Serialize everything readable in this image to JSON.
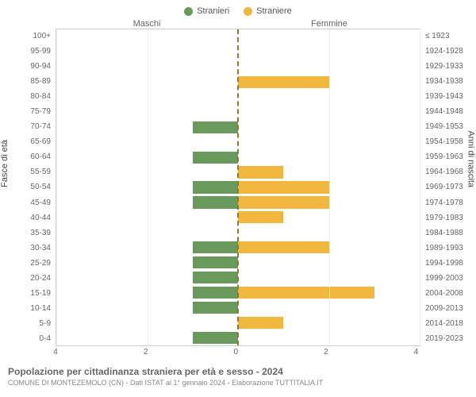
{
  "legend": [
    {
      "label": "Stranieri",
      "color": "#6a9a5b"
    },
    {
      "label": "Straniere",
      "color": "#f2b73f"
    }
  ],
  "header": {
    "left": "Maschi",
    "right": "Femmine"
  },
  "axis": {
    "left_title": "Fasce di età",
    "right_title": "Anni di nascita",
    "x_max": 4,
    "x_ticks": [
      4,
      2,
      0,
      2,
      4
    ],
    "grid_x": [
      -4,
      -2,
      0,
      2,
      4
    ],
    "grid_color": "#eeeeee",
    "center_line_color": "#8a7a2a"
  },
  "rows": [
    {
      "age": "100+",
      "birth": "≤ 1923",
      "m": 0,
      "f": 0
    },
    {
      "age": "95-99",
      "birth": "1924-1928",
      "m": 0,
      "f": 0
    },
    {
      "age": "90-94",
      "birth": "1929-1933",
      "m": 0,
      "f": 0
    },
    {
      "age": "85-89",
      "birth": "1934-1938",
      "m": 0,
      "f": 2
    },
    {
      "age": "80-84",
      "birth": "1939-1943",
      "m": 0,
      "f": 0
    },
    {
      "age": "75-79",
      "birth": "1944-1948",
      "m": 0,
      "f": 0
    },
    {
      "age": "70-74",
      "birth": "1949-1953",
      "m": 1,
      "f": 0
    },
    {
      "age": "65-69",
      "birth": "1954-1958",
      "m": 0,
      "f": 0
    },
    {
      "age": "60-64",
      "birth": "1959-1963",
      "m": 1,
      "f": 0
    },
    {
      "age": "55-59",
      "birth": "1964-1968",
      "m": 0,
      "f": 1
    },
    {
      "age": "50-54",
      "birth": "1969-1973",
      "m": 1,
      "f": 2
    },
    {
      "age": "45-49",
      "birth": "1974-1978",
      "m": 1,
      "f": 2
    },
    {
      "age": "40-44",
      "birth": "1979-1983",
      "m": 0,
      "f": 1
    },
    {
      "age": "35-39",
      "birth": "1984-1988",
      "m": 0,
      "f": 0
    },
    {
      "age": "30-34",
      "birth": "1989-1993",
      "m": 1,
      "f": 2
    },
    {
      "age": "25-29",
      "birth": "1994-1998",
      "m": 1,
      "f": 0
    },
    {
      "age": "20-24",
      "birth": "1999-2003",
      "m": 1,
      "f": 0
    },
    {
      "age": "15-19",
      "birth": "2004-2008",
      "m": 1,
      "f": 3
    },
    {
      "age": "10-14",
      "birth": "2009-2013",
      "m": 1,
      "f": 0
    },
    {
      "age": "5-9",
      "birth": "2014-2018",
      "m": 0,
      "f": 1
    },
    {
      "age": "0-4",
      "birth": "2019-2023",
      "m": 1,
      "f": 0
    }
  ],
  "colors": {
    "male": "#6a9a5b",
    "female": "#f2b73f"
  },
  "footer": {
    "title": "Popolazione per cittadinanza straniera per età e sesso - 2024",
    "subtitle": "COMUNE DI MONTEZEMOLO (CN) - Dati ISTAT al 1° gennaio 2024 - Elaborazione TUTTITALIA.IT"
  }
}
